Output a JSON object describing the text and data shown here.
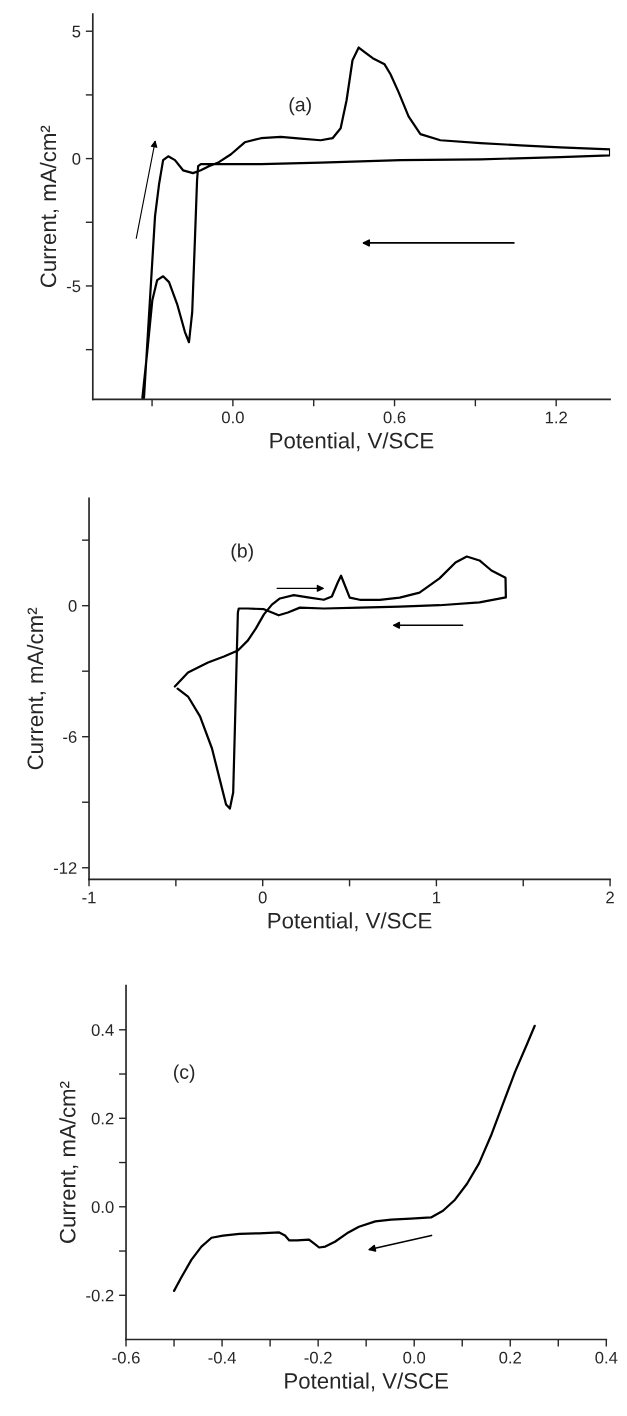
{
  "chart_data": [
    {
      "type": "line",
      "xlabel": "Potential, V/SCE",
      "ylabel": "Current, mA/cm²",
      "annotations": [
        "(a)"
      ],
      "grid": false,
      "legend": false,
      "marker": "none",
      "line_style": "solid",
      "xlim": [
        -0.52,
        1.4
      ],
      "xticks": [
        {
          "value": -0.3,
          "label": null
        },
        {
          "value": 0.0,
          "label": "0.0"
        },
        {
          "value": 0.3,
          "label": null
        },
        {
          "value": 0.6,
          "label": "0.6"
        },
        {
          "value": 0.9,
          "label": null
        },
        {
          "value": 1.2,
          "label": "1.2"
        }
      ],
      "ylim": [
        -9.45,
        5.67
      ],
      "yticks": [
        {
          "value": -7.5,
          "label": null
        },
        {
          "value": -5,
          "label": "-5"
        },
        {
          "value": -2.5,
          "label": null
        },
        0,
        {
          "value": 2.5,
          "label": null
        },
        5
      ],
      "series": [
        {
          "color": "#000000",
          "x": [
            -0.33,
            -0.289,
            -0.274,
            -0.259,
            -0.24,
            -0.215,
            -0.185,
            -0.148,
            -0.119,
            -0.089,
            -0.052,
            -0.007,
            0.044,
            0.104,
            0.178,
            0.252,
            0.326,
            0.37,
            0.4,
            0.422,
            0.444,
            0.467,
            0.489,
            0.519,
            0.563,
            0.585,
            0.615,
            0.652,
            0.696,
            0.77,
            0.919,
            1.067,
            1.215,
            1.4,
            1.4,
            1.215,
            0.919,
            0.622,
            0.326,
            0.104,
            -0.044,
            -0.119,
            -0.129,
            -0.133,
            -0.141,
            -0.151,
            -0.163,
            -0.178,
            -0.207,
            -0.237,
            -0.259,
            -0.281,
            -0.299,
            -0.318,
            -0.336
          ],
          "values": [
            -9.4,
            -2.26,
            -1.0,
            -0.06,
            0.09,
            -0.06,
            -0.46,
            -0.57,
            -0.46,
            -0.3,
            -0.14,
            0.17,
            0.64,
            0.8,
            0.85,
            0.78,
            0.72,
            0.8,
            1.19,
            2.29,
            3.86,
            4.36,
            4.18,
            3.94,
            3.7,
            3.31,
            2.61,
            1.66,
            0.96,
            0.72,
            0.61,
            0.52,
            0.44,
            0.36,
            0.13,
            0.06,
            -0.03,
            -0.06,
            -0.16,
            -0.22,
            -0.22,
            -0.22,
            -0.3,
            -0.85,
            -3.2,
            -6.03,
            -7.21,
            -6.81,
            -5.71,
            -4.85,
            -4.62,
            -4.77,
            -5.56,
            -7.6,
            -9.4
          ]
        }
      ]
    },
    {
      "type": "line",
      "xlabel": "Potential, V/SCE",
      "ylabel": "Current, mA/cm²",
      "annotations": [
        "(b)"
      ],
      "grid": false,
      "legend": false,
      "marker": "none",
      "line_style": "solid",
      "xlim": [
        -1,
        2
      ],
      "xticks": [
        -1,
        {
          "value": -0.5,
          "label": null
        },
        0,
        {
          "value": 0.5,
          "label": null
        },
        1,
        {
          "value": 1.5,
          "label": null
        },
        2
      ],
      "ylim": [
        -12.53,
        4.91
      ],
      "yticks": [
        -12,
        {
          "value": -9,
          "label": null
        },
        -6,
        {
          "value": -3,
          "label": null
        },
        0,
        {
          "value": 3,
          "label": null
        }
      ],
      "series": [
        {
          "color": "#000000",
          "x": [
            -0.506,
            -0.43,
            -0.315,
            -0.223,
            -0.143,
            -0.085,
            -0.039,
            0.007,
            0.053,
            0.099,
            0.179,
            0.26,
            0.352,
            0.398,
            0.432,
            0.451,
            0.471,
            0.501,
            0.559,
            0.674,
            0.789,
            0.903,
            1.018,
            1.11,
            1.175,
            1.248,
            1.317,
            1.398,
            1.4,
            1.248,
            1.018,
            0.789,
            0.559,
            0.352,
            0.214,
            0.145,
            0.092,
            0.053,
            0.007,
            -0.085,
            -0.138,
            -0.143,
            -0.149,
            -0.159,
            -0.17,
            -0.189,
            -0.211,
            -0.246,
            -0.292,
            -0.361,
            -0.43,
            -0.49
          ],
          "values": [
            -3.7,
            -3.06,
            -2.6,
            -2.33,
            -2.05,
            -1.59,
            -1.04,
            -0.4,
            0.05,
            0.33,
            0.48,
            0.38,
            0.27,
            0.42,
            1.06,
            1.37,
            0.97,
            0.37,
            0.27,
            0.27,
            0.37,
            0.6,
            1.25,
            1.98,
            2.25,
            2.07,
            1.61,
            1.28,
            0.38,
            0.15,
            0.02,
            -0.04,
            -0.09,
            -0.13,
            -0.09,
            -0.31,
            -0.44,
            -0.31,
            -0.16,
            -0.13,
            -0.13,
            -0.31,
            -2.14,
            -5.26,
            -8.55,
            -9.29,
            -9.1,
            -8.0,
            -6.54,
            -5.07,
            -4.16,
            -3.8
          ]
        }
      ]
    },
    {
      "type": "line",
      "xlabel": "Potential, V/SCE",
      "ylabel": "Current, mA/cm²",
      "annotations": [
        "(c)"
      ],
      "grid": false,
      "legend": false,
      "marker": "none",
      "line_style": "solid",
      "xlim": [
        -0.6,
        0.4
      ],
      "xticks": [
        -0.6,
        {
          "value": -0.5,
          "label": null
        },
        -0.4,
        {
          "value": -0.3,
          "label": null
        },
        -0.2,
        {
          "value": -0.1,
          "label": null
        },
        {
          "value": 0.0,
          "label": "0.0"
        },
        {
          "value": 0.1,
          "label": null
        },
        0.2,
        {
          "value": 0.3,
          "label": null
        },
        0.4
      ],
      "ylim": [
        -0.3,
        0.5
      ],
      "yticks": [
        -0.2,
        {
          "value": -0.1,
          "label": null
        },
        {
          "value": 0.0,
          "label": "0.0"
        },
        {
          "value": 0.1,
          "label": null
        },
        0.2,
        {
          "value": 0.3,
          "label": null
        },
        0.4
      ],
      "series": [
        {
          "color": "#000000",
          "x": [
            -0.5,
            -0.485,
            -0.464,
            -0.443,
            -0.422,
            -0.398,
            -0.364,
            -0.323,
            -0.281,
            -0.269,
            -0.26,
            -0.244,
            -0.219,
            -0.206,
            -0.198,
            -0.185,
            -0.165,
            -0.14,
            -0.115,
            -0.081,
            -0.048,
            -0.007,
            0.035,
            0.06,
            0.085,
            0.11,
            0.135,
            0.16,
            0.185,
            0.21,
            0.235,
            0.251
          ],
          "values": [
            -0.19,
            -0.16,
            -0.12,
            -0.09,
            -0.07,
            -0.065,
            -0.061,
            -0.06,
            -0.058,
            -0.065,
            -0.076,
            -0.076,
            -0.074,
            -0.085,
            -0.092,
            -0.09,
            -0.079,
            -0.06,
            -0.045,
            -0.033,
            -0.029,
            -0.027,
            -0.024,
            -0.009,
            0.016,
            0.052,
            0.098,
            0.161,
            0.233,
            0.305,
            0.368,
            0.409
          ]
        }
      ]
    }
  ]
}
